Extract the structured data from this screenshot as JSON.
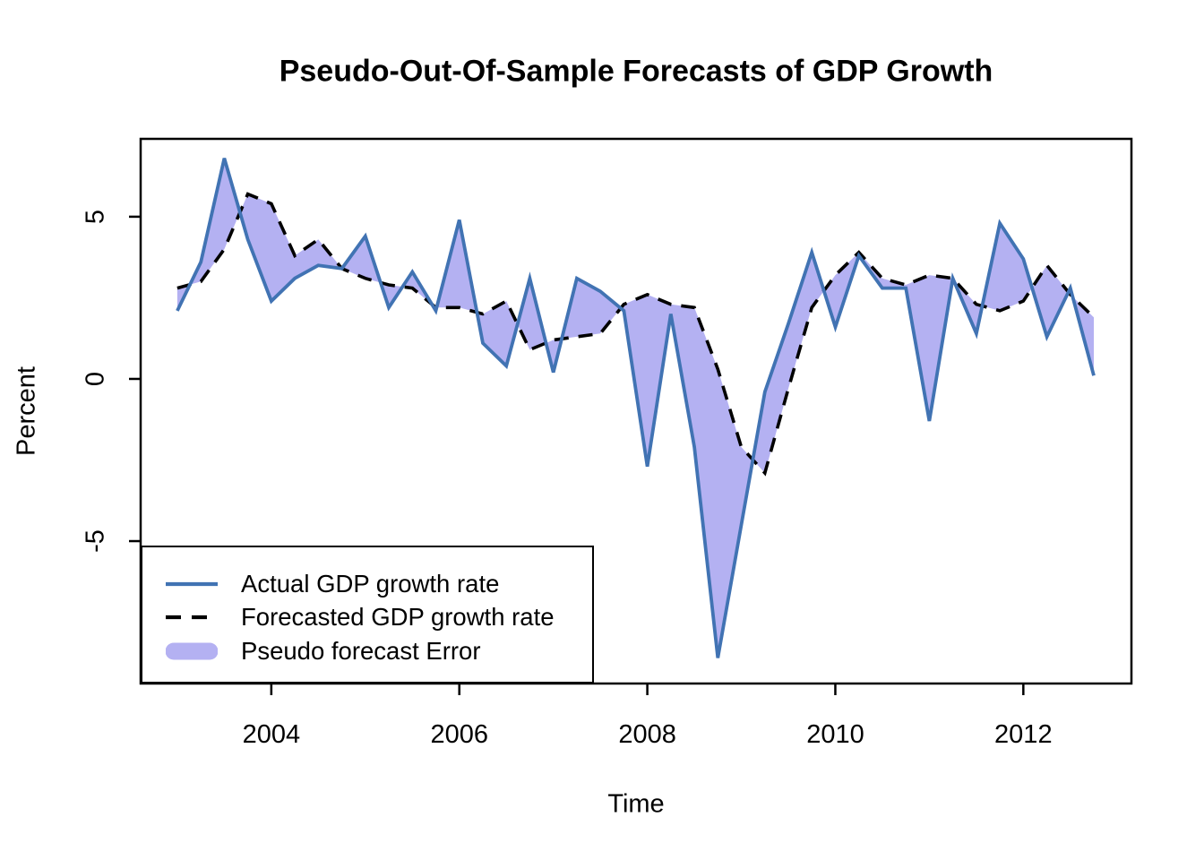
{
  "figure": {
    "title": "Pseudo-Out-Of-Sample Forecasts of GDP Growth",
    "xlabel": "Time",
    "ylabel": "Percent"
  },
  "chart_data": {
    "type": "line",
    "title": "Pseudo-Out-Of-Sample Forecasts of GDP Growth",
    "xlabel": "Time",
    "ylabel": "Percent",
    "grid": false,
    "x_start": 2003.0,
    "x_step": 0.25,
    "xlim": [
      2002.61,
      2013.15
    ],
    "ylim": [
      -9.39,
      7.4
    ],
    "x_ticks": [
      {
        "value": 2004,
        "label": "2004"
      },
      {
        "value": 2006,
        "label": "2006"
      },
      {
        "value": 2008,
        "label": "2008"
      },
      {
        "value": 2010,
        "label": "2010"
      },
      {
        "value": 2012,
        "label": "2012"
      }
    ],
    "y_ticks": [
      {
        "value": 5,
        "label": "5"
      },
      {
        "value": 0,
        "label": "0"
      },
      {
        "value": -5,
        "label": "-5"
      }
    ],
    "series": [
      {
        "name": "Actual GDP growth rate",
        "style": "solid",
        "color": "#4173B3",
        "values": [
          2.1,
          3.6,
          6.8,
          4.3,
          2.4,
          3.1,
          3.5,
          3.4,
          4.4,
          2.2,
          3.3,
          2.1,
          4.9,
          1.1,
          0.4,
          3.1,
          0.2,
          3.1,
          2.7,
          2.1,
          -2.7,
          2.0,
          -2.1,
          -8.6,
          -4.5,
          -0.4,
          1.7,
          3.9,
          1.6,
          3.8,
          2.8,
          2.8,
          -1.3,
          3.1,
          1.4,
          4.8,
          3.7,
          1.3,
          2.8,
          0.1
        ]
      },
      {
        "name": "Forecasted GDP growth rate",
        "style": "dashed",
        "color": "#000000",
        "values": [
          2.8,
          3.0,
          4.0,
          5.7,
          5.4,
          3.8,
          4.3,
          3.4,
          3.1,
          2.9,
          2.8,
          2.2,
          2.2,
          2.0,
          2.4,
          0.9,
          1.2,
          1.3,
          1.4,
          2.3,
          2.6,
          2.3,
          2.2,
          0.3,
          -2.1,
          -2.9,
          -0.3,
          2.2,
          3.2,
          3.9,
          3.1,
          2.9,
          3.2,
          3.1,
          2.3,
          2.1,
          2.4,
          3.5,
          2.6,
          1.9
        ]
      }
    ],
    "band": {
      "name": "Pseudo forecast Error",
      "color": "#B4B1F2"
    },
    "legend": {
      "position": "bottom-left",
      "items": [
        {
          "label": "Actual GDP growth rate",
          "swatch": "solid-line",
          "color": "#4173B3"
        },
        {
          "label": "Forecasted GDP growth rate",
          "swatch": "dashed-line",
          "color": "#000000"
        },
        {
          "label": "Pseudo forecast Error",
          "swatch": "band",
          "color": "#B4B1F2"
        }
      ]
    }
  }
}
